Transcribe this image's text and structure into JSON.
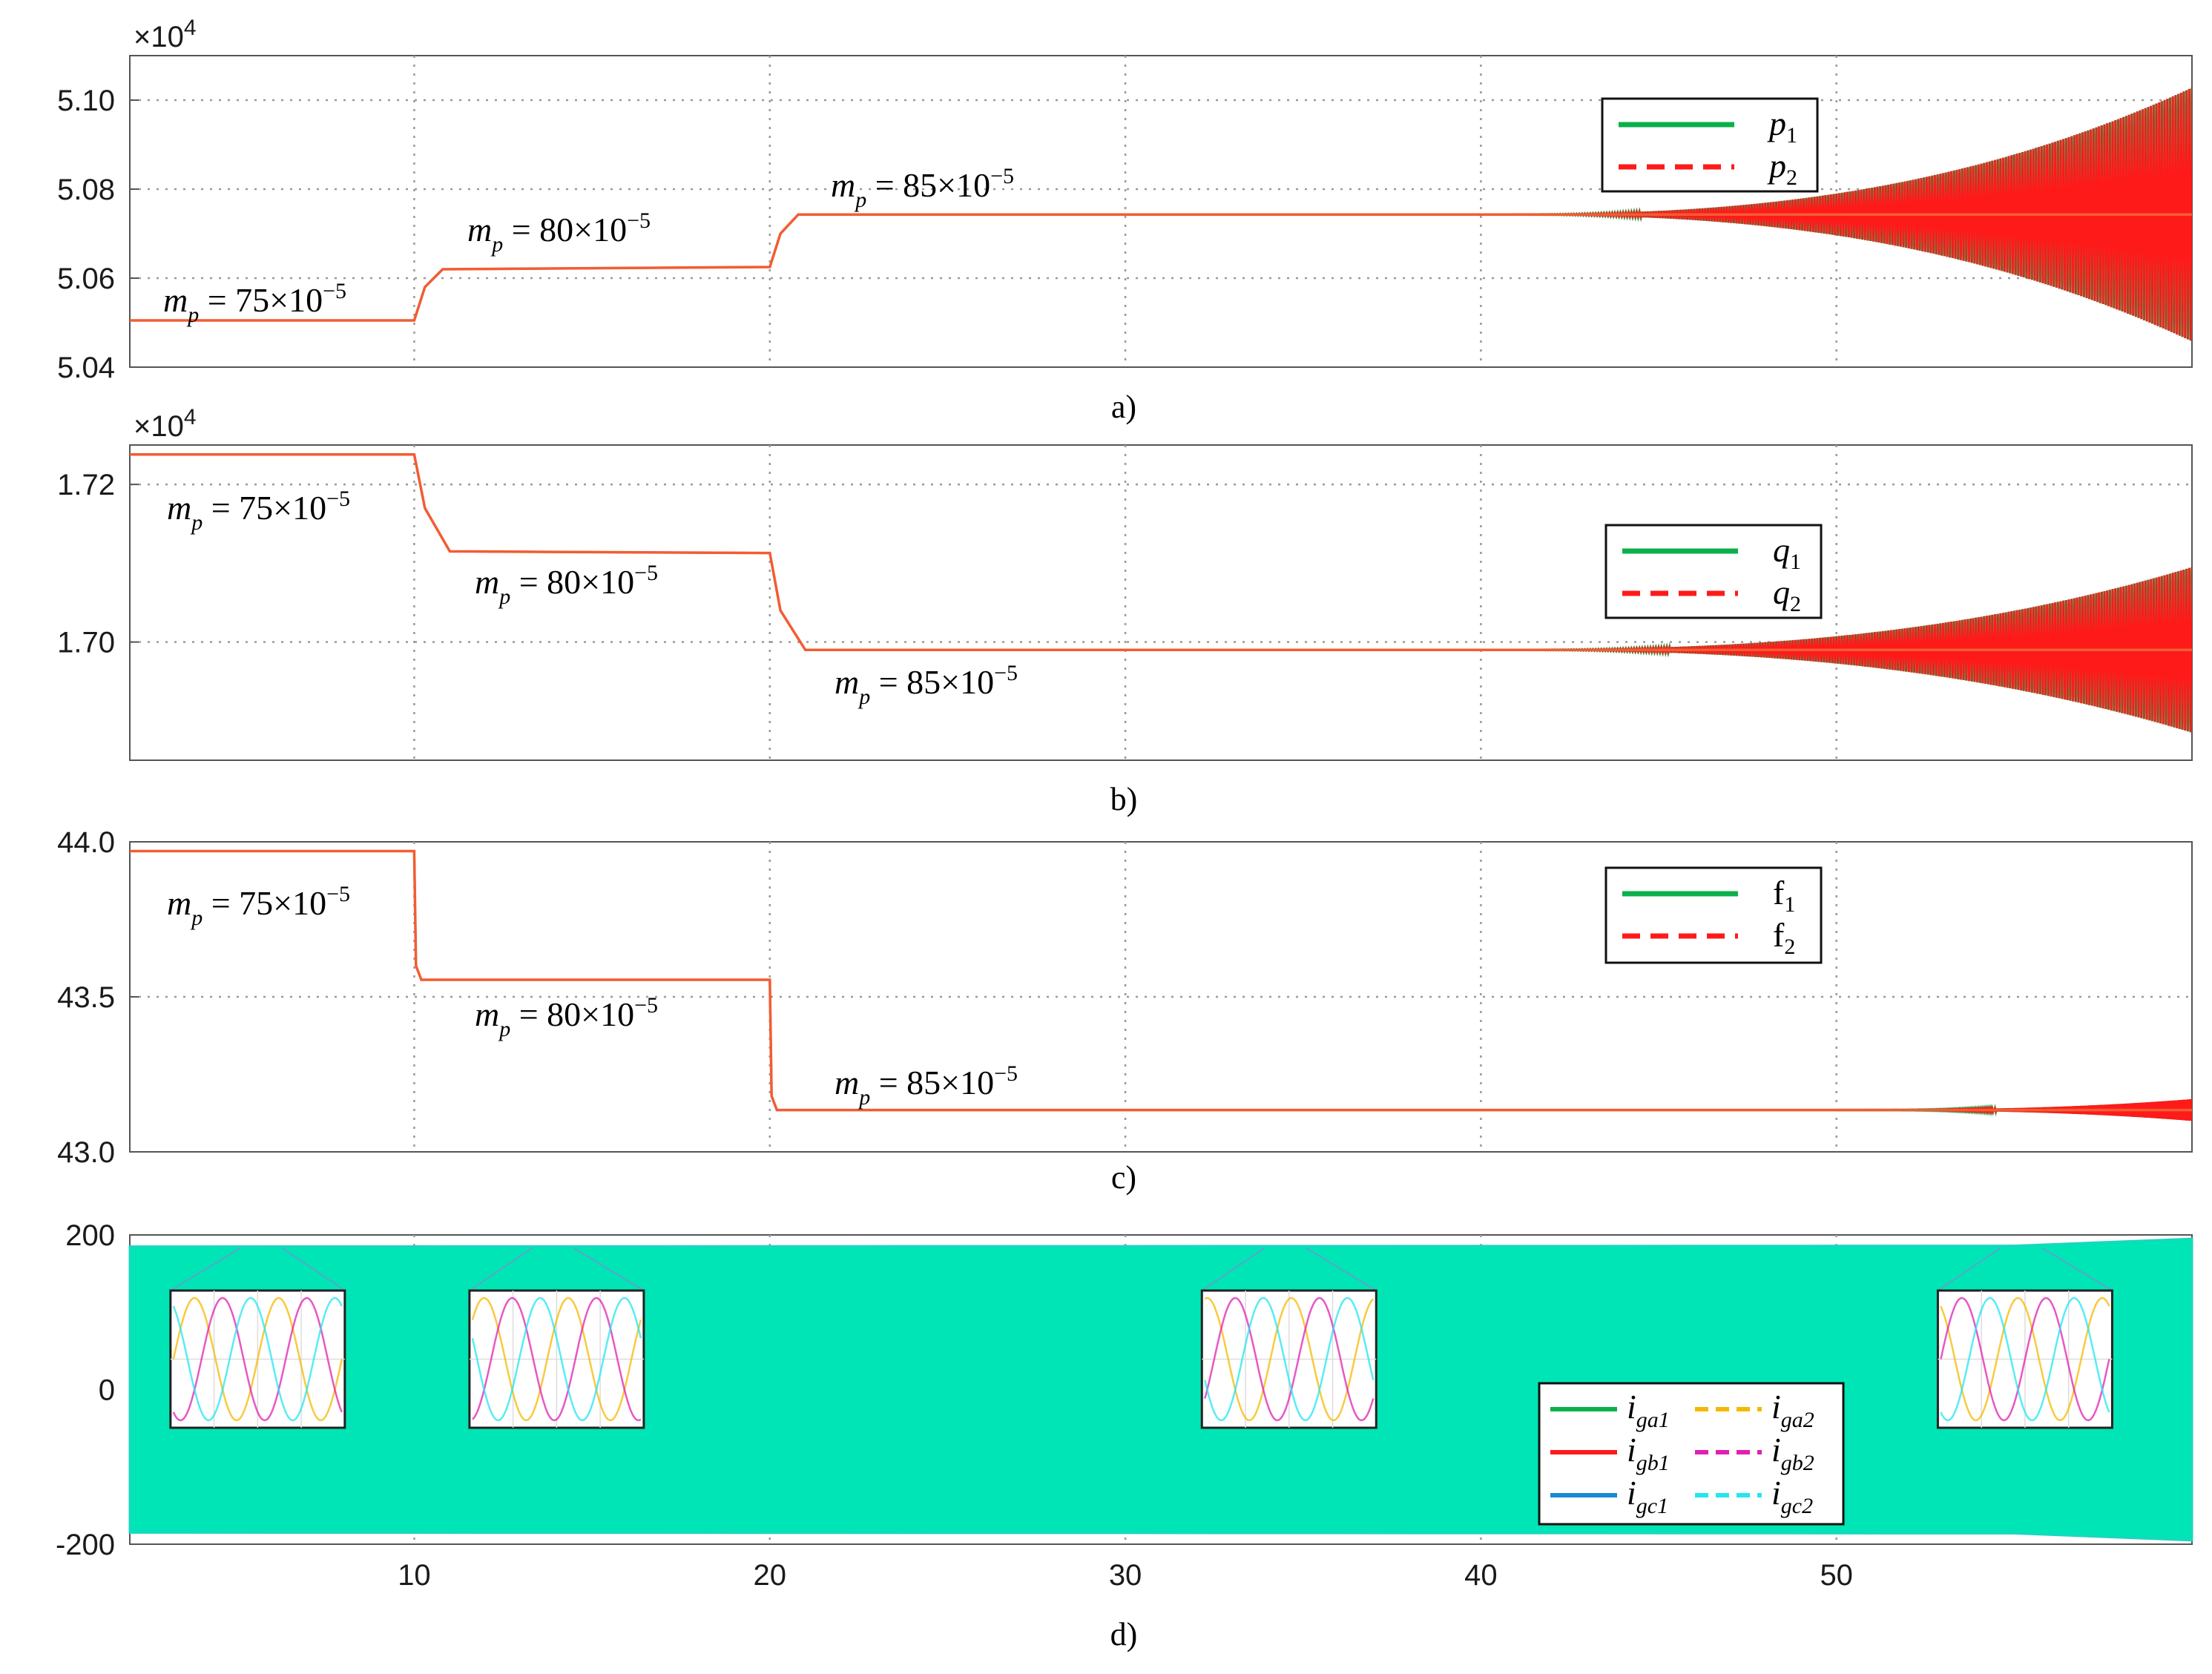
{
  "colors": {
    "green": "#0bb04b",
    "red": "#ff1a1a",
    "orange_red": "#f25c33",
    "yellow": "#f5b800",
    "magenta": "#e020b0",
    "blue": "#1a8ad4",
    "cyan": "#22e6f0",
    "band": "#00e5b5",
    "grid": "#9a9a9a"
  },
  "chart_data": [
    {
      "panel": "a",
      "type": "line",
      "caption": "a)",
      "multiplier": "×10",
      "multiplier_exp": "4",
      "xlim": [
        2,
        60
      ],
      "ylim": [
        5.04,
        5.11
      ],
      "yticks": [
        "5.04",
        "5.06",
        "5.08",
        "5.10"
      ],
      "ytick_values": [
        5.04,
        5.06,
        5.08,
        5.1
      ],
      "grid": true,
      "legend": {
        "placement": "top-right",
        "items": [
          {
            "base": "p",
            "sub": "1",
            "style": "solid",
            "color": "green"
          },
          {
            "base": "p",
            "sub": "2",
            "style": "dashed",
            "color": "red"
          }
        ]
      },
      "series": [
        {
          "name": "p1",
          "x": [
            2,
            10,
            10.3,
            10.8,
            20,
            20.3,
            20.8,
            60
          ],
          "y": [
            5.0505,
            5.0505,
            5.058,
            5.062,
            5.0625,
            5.07,
            5.0743,
            5.0743
          ]
        },
        {
          "name": "p2",
          "x": [
            2,
            10,
            10.3,
            10.8,
            20,
            20.3,
            20.8,
            60
          ],
          "y": [
            5.0505,
            5.0505,
            5.058,
            5.062,
            5.0625,
            5.07,
            5.0743,
            5.0743
          ]
        }
      ],
      "oscillation": {
        "start_x": 40,
        "center": 5.0743,
        "end_amplitude": 0.0285
      },
      "annotations": [
        {
          "base": "m",
          "sub": "p",
          "rest": " = 75×10",
          "sup": "−5"
        },
        {
          "base": "m",
          "sub": "p",
          "rest": " = 80×10",
          "sup": "−5"
        },
        {
          "base": "m",
          "sub": "p",
          "rest": " = 85×10",
          "sup": "−5"
        }
      ]
    },
    {
      "panel": "b",
      "type": "line",
      "caption": "b)",
      "multiplier": "×10",
      "multiplier_exp": "4",
      "xlim": [
        2,
        60
      ],
      "ylim": [
        1.685,
        1.725
      ],
      "yticks": [
        "1.70",
        "1.72"
      ],
      "ytick_values": [
        1.7,
        1.72
      ],
      "grid": true,
      "legend": {
        "placement": "top-right",
        "items": [
          {
            "base": "q",
            "sub": "1",
            "style": "solid",
            "color": "green"
          },
          {
            "base": "q",
            "sub": "2",
            "style": "dashed",
            "color": "red"
          }
        ]
      },
      "series": [
        {
          "name": "q1",
          "x": [
            2,
            10,
            10.3,
            11,
            20,
            20.3,
            21,
            60
          ],
          "y": [
            1.7238,
            1.7238,
            1.717,
            1.7115,
            1.7113,
            1.704,
            1.699,
            1.699
          ]
        },
        {
          "name": "q2",
          "x": [
            2,
            10,
            10.3,
            11,
            20,
            20.3,
            21,
            60
          ],
          "y": [
            1.7238,
            1.7238,
            1.717,
            1.7115,
            1.7113,
            1.704,
            1.699,
            1.699
          ]
        }
      ],
      "oscillation": {
        "start_x": 40,
        "center": 1.699,
        "end_amplitude": 0.0105
      },
      "annotations": [
        {
          "base": "m",
          "sub": "p",
          "rest": " = 75×10",
          "sup": "−5"
        },
        {
          "base": "m",
          "sub": "p",
          "rest": " = 80×10",
          "sup": "−5"
        },
        {
          "base": "m",
          "sub": "p",
          "rest": " = 85×10",
          "sup": "−5"
        }
      ]
    },
    {
      "panel": "c",
      "type": "line",
      "caption": "c)",
      "xlim": [
        2,
        60
      ],
      "ylim": [
        43.0,
        44.0
      ],
      "yticks": [
        "43.0",
        "43.5",
        "44.0"
      ],
      "ytick_values": [
        43.0,
        43.5,
        44.0
      ],
      "grid": true,
      "legend": {
        "placement": "top-right",
        "items": [
          {
            "base": "f",
            "sub": "1",
            "style": "solid",
            "color": "green"
          },
          {
            "base": "f",
            "sub": "2",
            "style": "dashed",
            "color": "red"
          }
        ]
      },
      "series": [
        {
          "name": "f1",
          "x": [
            2,
            10,
            10.05,
            10.2,
            20,
            20.05,
            20.2,
            60
          ],
          "y": [
            43.97,
            43.97,
            43.6,
            43.555,
            43.555,
            43.18,
            43.135,
            43.135
          ]
        },
        {
          "name": "f2",
          "x": [
            2,
            10,
            10.05,
            10.2,
            20,
            20.05,
            20.2,
            60
          ],
          "y": [
            43.97,
            43.97,
            43.6,
            43.555,
            43.555,
            43.18,
            43.135,
            43.135
          ]
        }
      ],
      "oscillation": {
        "start_x": 50,
        "center": 43.135,
        "end_amplitude": 0.035
      },
      "annotations": [
        {
          "base": "m",
          "sub": "p",
          "rest": " = 75×10",
          "sup": "−5"
        },
        {
          "base": "m",
          "sub": "p",
          "rest": " = 80×10",
          "sup": "−5"
        },
        {
          "base": "m",
          "sub": "p",
          "rest": " = 85×10",
          "sup": "−5"
        }
      ]
    },
    {
      "panel": "d",
      "type": "area",
      "caption": "d)",
      "xlim": [
        2,
        60
      ],
      "ylim": [
        -200,
        200
      ],
      "yticks": [
        "-200",
        "0",
        "200"
      ],
      "ytick_values": [
        -200,
        0,
        200
      ],
      "xticks": [
        "10",
        "20",
        "30",
        "40",
        "50"
      ],
      "xtick_values": [
        10,
        20,
        30,
        40,
        50
      ],
      "grid": true,
      "envelope": {
        "x": [
          2,
          55,
          60
        ],
        "amplitude": [
          185,
          186,
          195
        ]
      },
      "zoom_insets_at_x": [
        5.7,
        13.9,
        34.5,
        55.2
      ],
      "inset_signals": [
        {
          "color": "yellow",
          "phase_deg": 0
        },
        {
          "color": "magenta",
          "phase_deg": -120
        },
        {
          "color": "cyan",
          "phase_deg": 120
        }
      ],
      "legend": {
        "placement": "bottom-right",
        "items": [
          {
            "base": "i",
            "sub": "ga1",
            "style": "solid",
            "color": "green"
          },
          {
            "base": "i",
            "sub": "ga2",
            "style": "dashed",
            "color": "yellow"
          },
          {
            "base": "i",
            "sub": "gb1",
            "style": "solid",
            "color": "red"
          },
          {
            "base": "i",
            "sub": "gb2",
            "style": "dashed",
            "color": "magenta"
          },
          {
            "base": "i",
            "sub": "gc1",
            "style": "solid",
            "color": "blue"
          },
          {
            "base": "i",
            "sub": "gc2",
            "style": "dashed",
            "color": "cyan"
          }
        ]
      }
    }
  ]
}
